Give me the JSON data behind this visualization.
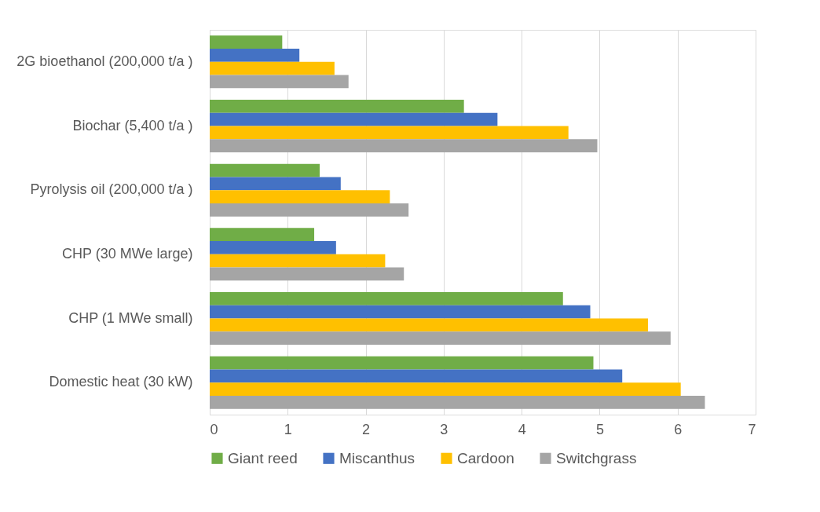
{
  "chart_data": {
    "type": "bar",
    "orientation": "horizontal",
    "categories": [
      "2G bioethanol (200,000 t/a )",
      "Biochar (5,400 t/a )",
      "Pyrolysis oil (200,000 t/a )",
      "CHP (30 MWe large)",
      "CHP (1 MWe small)",
      "Domestic heat (30 kW)"
    ],
    "series": [
      {
        "name": "Giant reed",
        "color": "#70ad47",
        "values": [
          0.93,
          3.26,
          1.41,
          1.34,
          4.53,
          4.92
        ]
      },
      {
        "name": "Miscanthus",
        "color": "#4472c4",
        "values": [
          1.15,
          3.69,
          1.68,
          1.62,
          4.88,
          5.29
        ]
      },
      {
        "name": "Cardoon",
        "color": "#ffc000",
        "values": [
          1.6,
          4.6,
          2.31,
          2.25,
          5.62,
          6.04
        ]
      },
      {
        "name": "Switchgrass",
        "color": "#a5a5a5",
        "values": [
          1.78,
          4.97,
          2.55,
          2.49,
          5.91,
          6.35
        ]
      }
    ],
    "xlim": [
      0,
      7
    ],
    "xticks": [
      0,
      1,
      2,
      3,
      4,
      5,
      6,
      7
    ],
    "grid": "x",
    "legend": "bottom"
  }
}
